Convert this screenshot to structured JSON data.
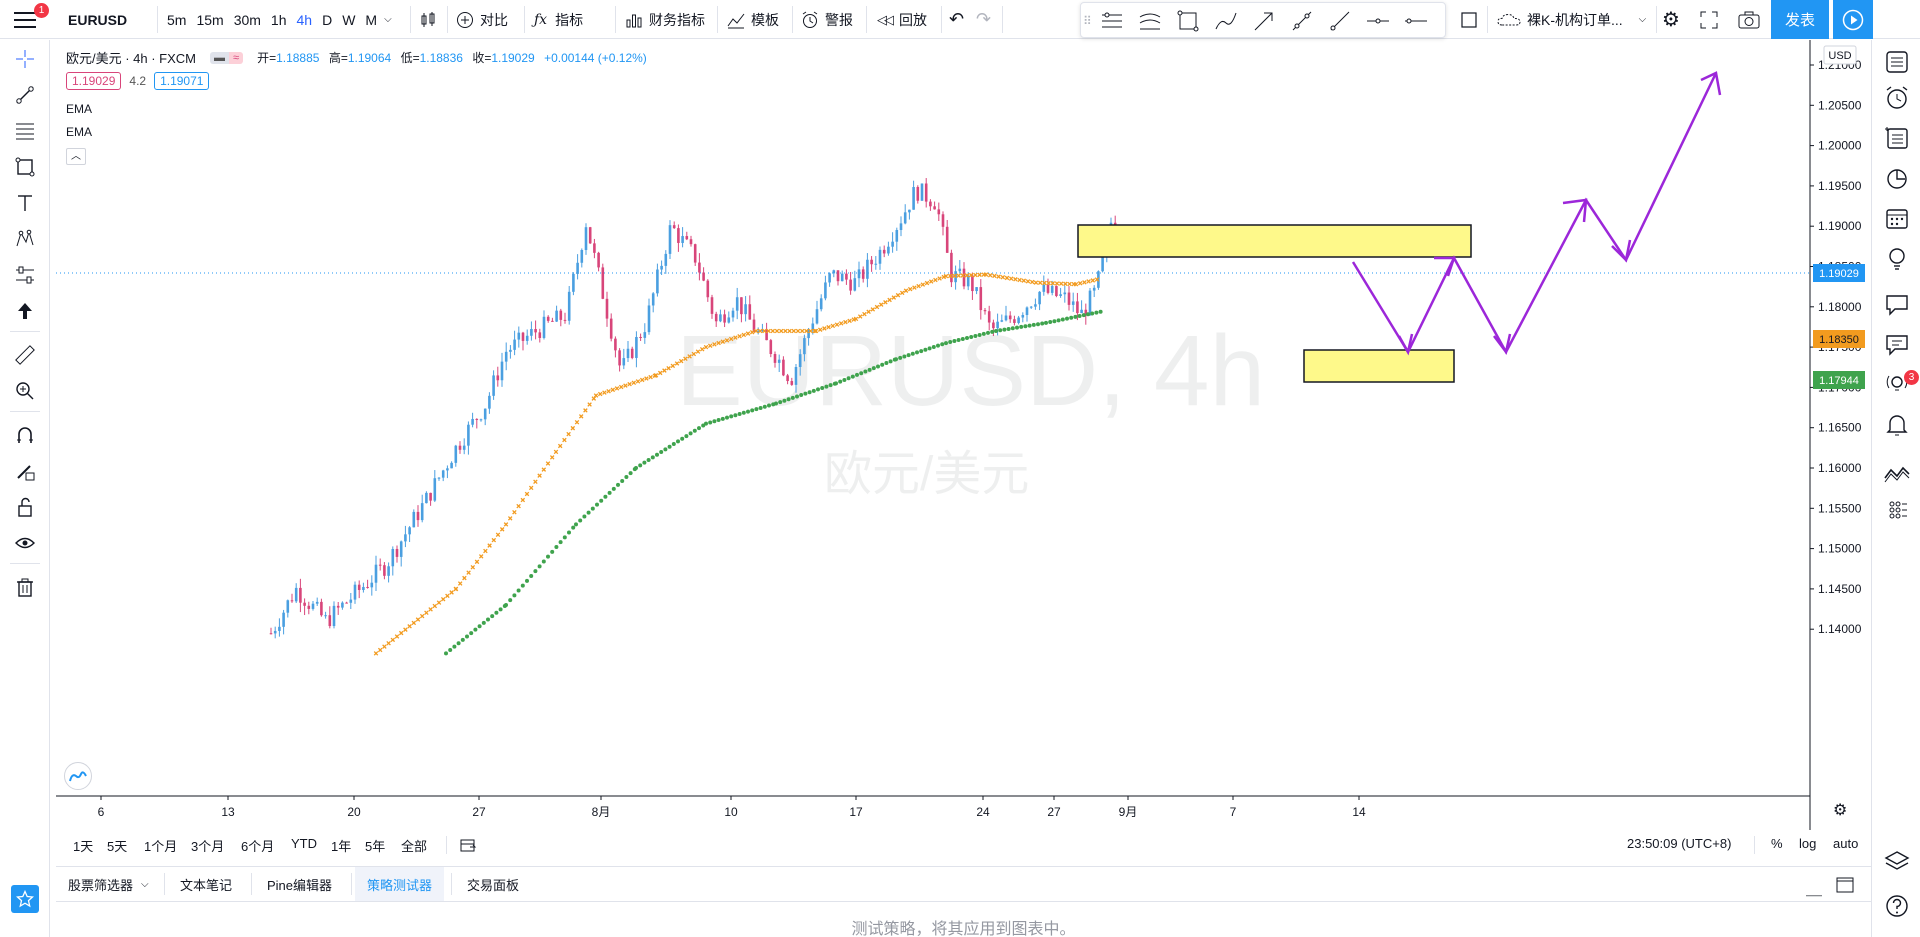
{
  "topbar": {
    "notification_count": "1",
    "symbol": "EURUSD",
    "timeframes": [
      "5m",
      "15m",
      "30m",
      "1h",
      "4h",
      "D",
      "W",
      "M"
    ],
    "active_timeframe": "4h",
    "compare_label": "对比",
    "indicators_label": "指标",
    "financials_label": "财务指标",
    "templates_label": "模板",
    "alert_label": "警报",
    "replay_label": "回放",
    "layout_name": "裸K-机构订单...",
    "publish_label": "发表"
  },
  "legend": {
    "title": "欧元/美元 · 4h · FXCM",
    "open_label": "开=",
    "open": "1.18885",
    "high_label": "高=",
    "high": "1.19064",
    "low_label": "低=",
    "low": "1.18836",
    "close_label": "收=",
    "close": "1.19029",
    "change": "+0.00144 (+0.12%)",
    "bid": "1.19029",
    "spread": "4.2",
    "ask": "1.19071",
    "indicator1": "EMA",
    "indicator2": "EMA"
  },
  "chart": {
    "watermark_symbol": "EURUSD, 4h",
    "watermark_name": "欧元/美元",
    "currency": "USD",
    "price_ticks": [
      "1.21000",
      "1.20500",
      "1.20000",
      "1.19500",
      "1.19000",
      "1.18500",
      "1.18000",
      "1.17500",
      "1.17000",
      "1.16500",
      "1.16000",
      "1.15500",
      "1.15000",
      "1.14500",
      "1.14000"
    ],
    "date_ticks": [
      "6",
      "13",
      "20",
      "27",
      "8月",
      "10",
      "17",
      "24",
      "27",
      "9月",
      "7",
      "14"
    ],
    "last_price": "1.19029",
    "ema_fast": "1.18350",
    "ema_slow": "1.17944",
    "colors": {
      "up": "#4a9fe0",
      "down": "#d8457a",
      "ema_fast": "#f29b1f",
      "ema_slow": "#3fa34d",
      "zone": "#fef98a",
      "arrow": "#9c27d9",
      "last_price": "#2196f3"
    }
  },
  "chart_data": {
    "type": "candlestick",
    "symbol": "EURUSD",
    "timeframe": "4h",
    "ylim": [
      1.137,
      1.213
    ],
    "last_close": 1.19029,
    "ema_fast_last": 1.1835,
    "ema_slow_last": 1.17944,
    "zones": [
      {
        "from": 1.1921,
        "to": 1.1952
      },
      {
        "from": 1.1794,
        "to": 1.1826
      }
    ],
    "projection_path": [
      1.1921,
      1.1827,
      1.1923,
      1.1827,
      1.1981,
      1.1918,
      1.2105
    ]
  },
  "rangebar": {
    "ranges": [
      "1天",
      "5天",
      "1个月",
      "3个月",
      "6个月",
      "YTD",
      "1年",
      "5年",
      "全部"
    ],
    "clock": "23:50:09 (UTC+8)",
    "pct": "%",
    "log": "log",
    "auto": "auto"
  },
  "bottom_panel": {
    "tabs": [
      "股票筛选器",
      "文本笔记",
      "Pine编辑器",
      "策略测试器",
      "交易面板"
    ],
    "active_tab": "策略测试器",
    "message": "测试策略，将其应用到图表中。"
  },
  "right_panel": {
    "chat_badge": "3"
  }
}
